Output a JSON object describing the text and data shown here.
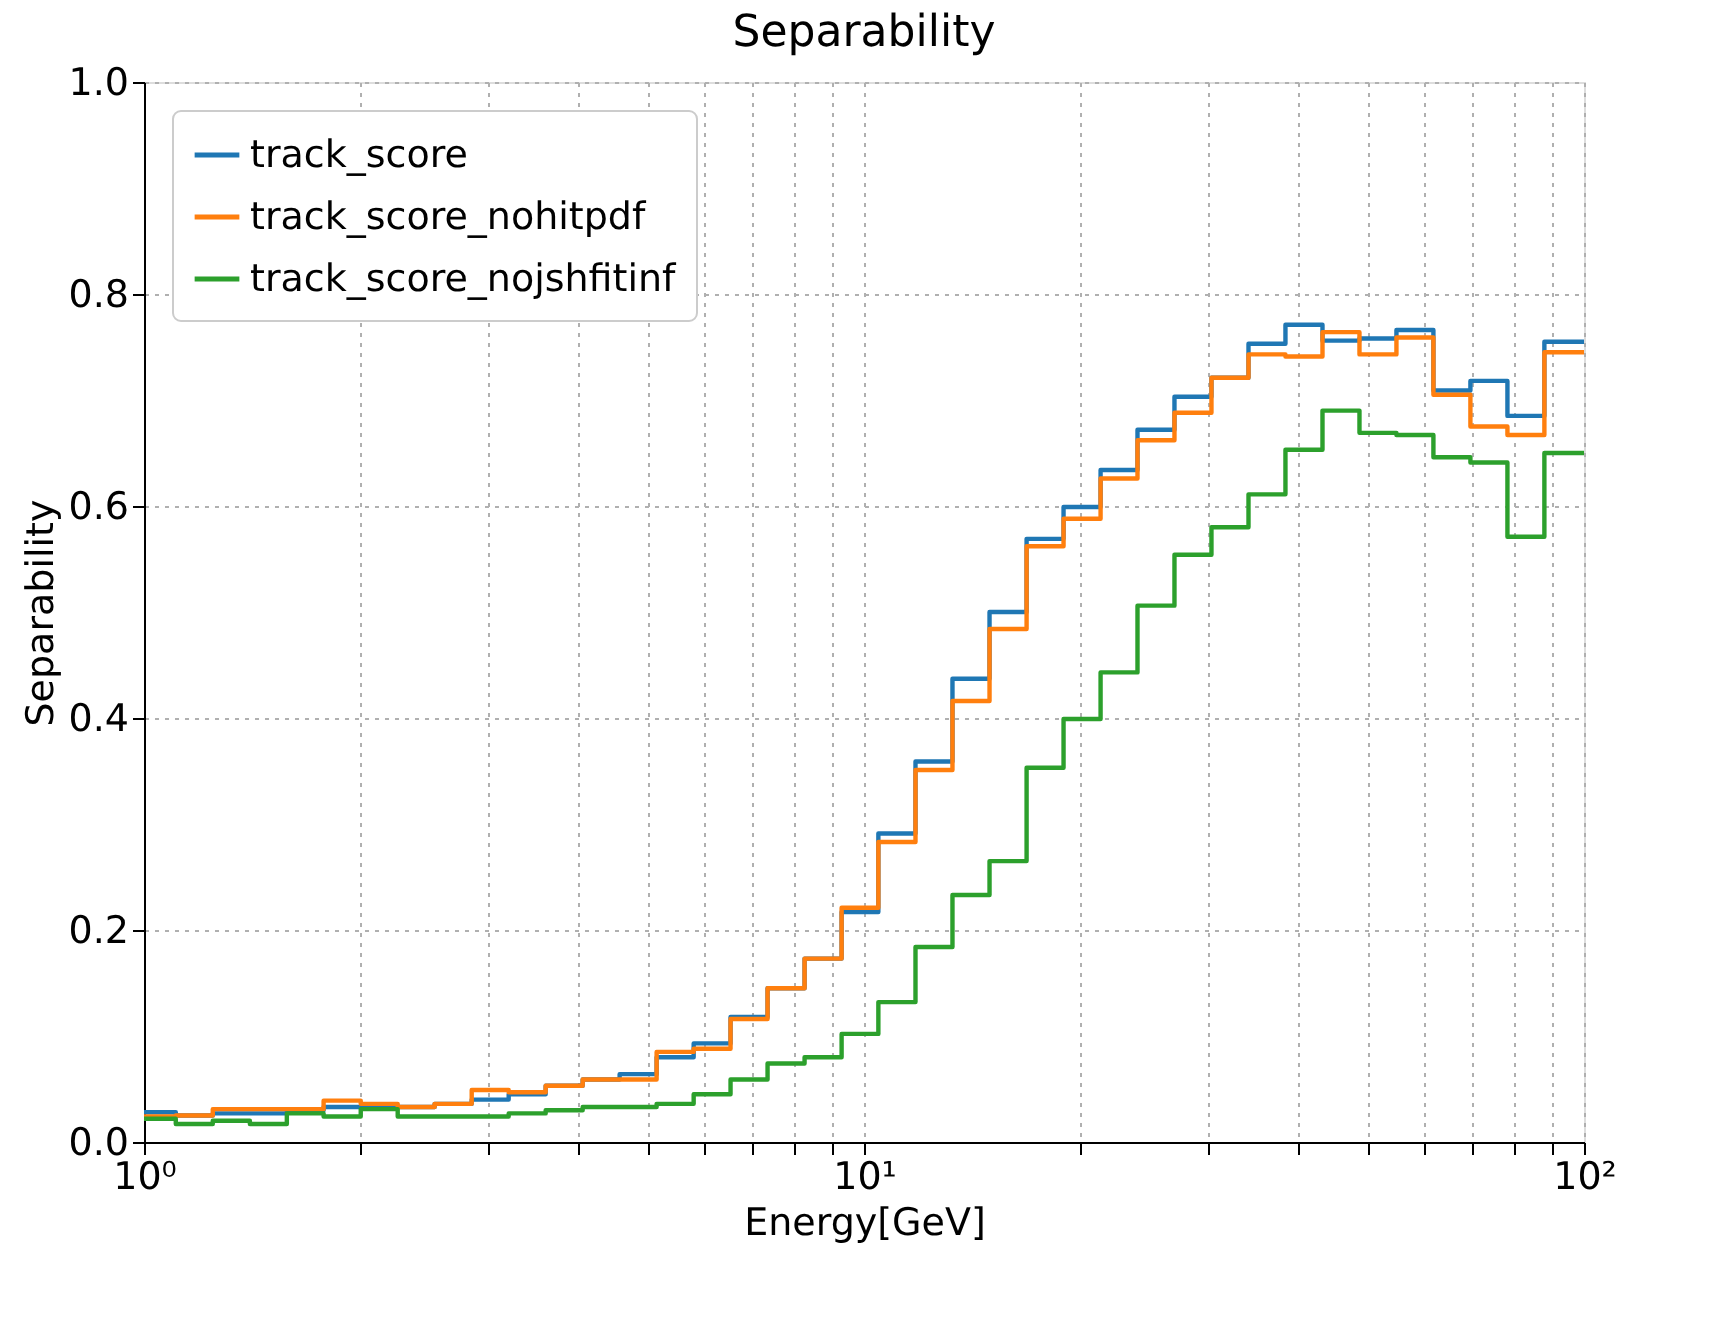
{
  "chart_data": {
    "type": "histogram",
    "title": "Separability",
    "xlabel": "Energy[GeV]",
    "ylabel": "Separability",
    "bins": [
      1,
      1.107,
      1.246,
      1.403,
      1.579,
      1.776,
      2.0,
      2.251,
      2.533,
      2.852,
      3.21,
      3.613,
      4.067,
      4.577,
      5.152,
      5.8,
      6.526,
      7.346,
      8.269,
      9.309,
      10.47,
      11.79,
      13.27,
      14.94,
      16.82,
      18.93,
      21.31,
      23.98,
      26.99,
      30.38,
      34.2,
      38.49,
      43.33,
      48.77,
      54.89,
      61.78,
      69.54,
      78.28,
      88.1,
      100
    ],
    "series": [
      {
        "name": "track_score",
        "color": "#1f77b4",
        "values": [
          0.028,
          0.025,
          0.027,
          0.027,
          0.03,
          0.033,
          0.033,
          0.033,
          0.036,
          0.04,
          0.045,
          0.053,
          0.059,
          0.064,
          0.08,
          0.093,
          0.118,
          0.145,
          0.173,
          0.217,
          0.291,
          0.359,
          0.437,
          0.5,
          0.569,
          0.599,
          0.634,
          0.672,
          0.703,
          0.721,
          0.753,
          0.771,
          0.756,
          0.758,
          0.766,
          0.709,
          0.718,
          0.685,
          0.755
        ]
      },
      {
        "name": "track_score_nohitpdf",
        "color": "#ff7f0e",
        "values": [
          0.024,
          0.025,
          0.031,
          0.031,
          0.031,
          0.039,
          0.036,
          0.033,
          0.036,
          0.049,
          0.047,
          0.053,
          0.059,
          0.059,
          0.085,
          0.088,
          0.116,
          0.145,
          0.173,
          0.221,
          0.283,
          0.351,
          0.416,
          0.484,
          0.562,
          0.588,
          0.626,
          0.662,
          0.688,
          0.721,
          0.743,
          0.741,
          0.764,
          0.743,
          0.759,
          0.705,
          0.675,
          0.667,
          0.745
        ]
      },
      {
        "name": "track_score_nojshfitinf",
        "color": "#2ca02c",
        "values": [
          0.022,
          0.017,
          0.02,
          0.017,
          0.027,
          0.024,
          0.031,
          0.024,
          0.024,
          0.024,
          0.027,
          0.03,
          0.033,
          0.033,
          0.036,
          0.045,
          0.059,
          0.074,
          0.08,
          0.102,
          0.132,
          0.184,
          0.233,
          0.265,
          0.353,
          0.399,
          0.443,
          0.506,
          0.554,
          0.58,
          0.611,
          0.653,
          0.69,
          0.669,
          0.667,
          0.646,
          0.641,
          0.571,
          0.65
        ]
      }
    ],
    "log": "x",
    "xlim": [
      1,
      100
    ],
    "xticks": [
      {
        "value": 1,
        "label": "10⁰"
      },
      {
        "value": 2,
        "label": null
      },
      {
        "value": 3,
        "label": null
      },
      {
        "value": 4,
        "label": null
      },
      {
        "value": 5,
        "label": null
      },
      {
        "value": 6,
        "label": null
      },
      {
        "value": 7,
        "label": null
      },
      {
        "value": 8,
        "label": null
      },
      {
        "value": 9,
        "label": null
      },
      {
        "value": 10,
        "label": "10¹"
      },
      {
        "value": 20,
        "label": null
      },
      {
        "value": 30,
        "label": null
      },
      {
        "value": 40,
        "label": null
      },
      {
        "value": 50,
        "label": null
      },
      {
        "value": 60,
        "label": null
      },
      {
        "value": 70,
        "label": null
      },
      {
        "value": 80,
        "label": null
      },
      {
        "value": 90,
        "label": null
      },
      {
        "value": 100,
        "label": "10²"
      }
    ],
    "ylim": [
      0,
      1
    ],
    "yticks": [
      {
        "value": 0,
        "label": "0.0"
      },
      {
        "value": 0.2,
        "label": "0.2"
      },
      {
        "value": 0.4,
        "label": "0.4"
      },
      {
        "value": 0.6,
        "label": "0.6"
      },
      {
        "value": 0.8,
        "label": "0.8"
      },
      {
        "value": 1,
        "label": "1.0"
      }
    ],
    "grid": true,
    "legend": "top left",
    "line_style": "solid"
  }
}
